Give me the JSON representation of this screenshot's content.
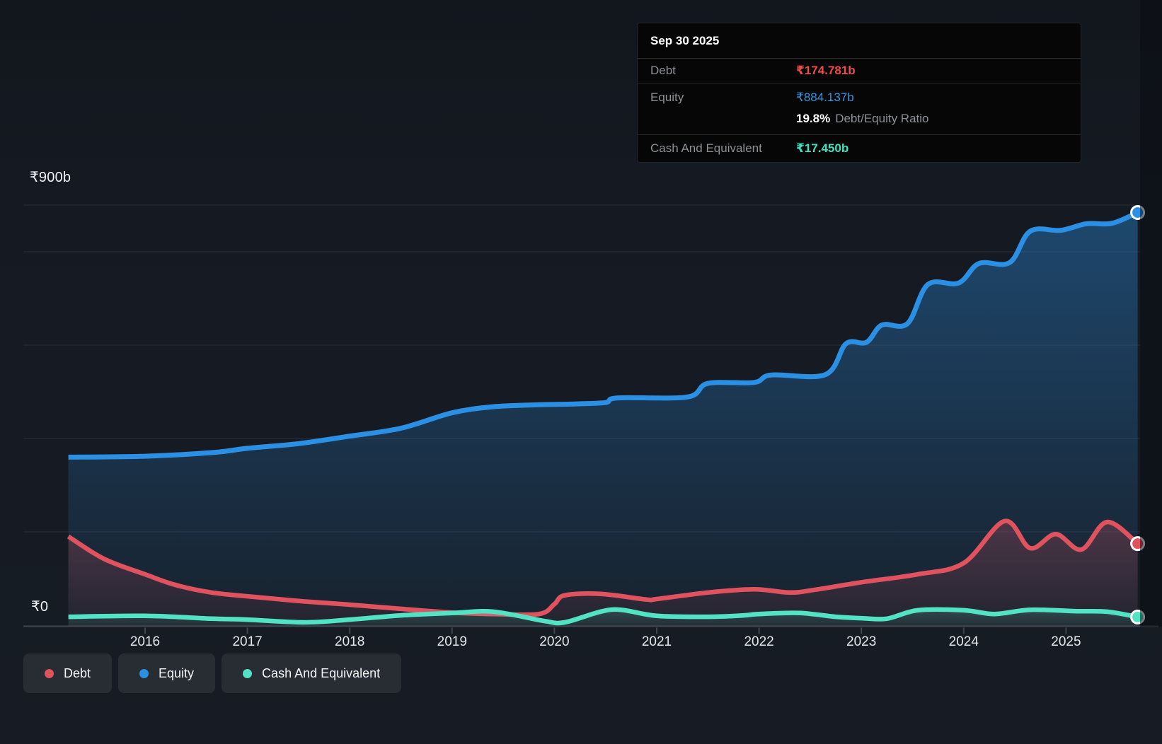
{
  "colors": {
    "page_bg": "#151a22",
    "equity": "#2b8fe3",
    "debt": "#e0525e",
    "cash": "#52e3c4",
    "equity_value_text": "#2e97e8",
    "debt_value_text": "#ee4b4b",
    "cash_value_text": "#3ee2bd",
    "grid": "#2d333d",
    "axis": "#3f4651",
    "marker_ring": "#ffffff"
  },
  "tooltip": {
    "date": "Sep 30 2025",
    "debt_label": "Debt",
    "debt_value": "₹174.781b",
    "equity_label": "Equity",
    "equity_value": "₹884.137b",
    "ratio_pct": "19.8%",
    "ratio_label": "Debt/Equity Ratio",
    "cash_label": "Cash And Equivalent",
    "cash_value": "₹17.450b"
  },
  "y_axis": {
    "top_label": "₹900b",
    "zero_label": "₹0"
  },
  "legend": [
    {
      "label": "Debt",
      "color_key": "debt"
    },
    {
      "label": "Equity",
      "color_key": "equity"
    },
    {
      "label": "Cash And Equivalent",
      "color_key": "cash"
    }
  ],
  "chart_data": {
    "type": "area",
    "unit": "₹ billions (b)",
    "x_ticks": [
      2016,
      2017,
      2018,
      2019,
      2020,
      2021,
      2022,
      2023,
      2024,
      2025
    ],
    "x_range": [
      2015.25,
      2025.75
    ],
    "y_range": [
      0,
      900
    ],
    "y_gridline_values": [
      900,
      800,
      600,
      400,
      200
    ],
    "grid": true,
    "legend_position": "bottom-left",
    "latest": {
      "date": "Sep 30 2025",
      "debt": 174.781,
      "equity": 884.137,
      "cash": 17.45,
      "debt_equity_ratio_pct": 19.8
    },
    "series": [
      {
        "name": "Equity",
        "color": "#2b8fe3",
        "points": [
          [
            2015.25,
            360
          ],
          [
            2016,
            362
          ],
          [
            2016.67,
            370
          ],
          [
            2017,
            379
          ],
          [
            2017.5,
            389
          ],
          [
            2018,
            405
          ],
          [
            2018.5,
            422
          ],
          [
            2019,
            455
          ],
          [
            2019.4,
            468
          ],
          [
            2019.8,
            472
          ],
          [
            2020.2,
            474
          ],
          [
            2020.5,
            477
          ],
          [
            2020.62,
            487
          ],
          [
            2021.3,
            489
          ],
          [
            2021.5,
            518
          ],
          [
            2021.95,
            520
          ],
          [
            2022.12,
            536
          ],
          [
            2022.65,
            537
          ],
          [
            2022.85,
            603
          ],
          [
            2023.05,
            606
          ],
          [
            2023.2,
            643
          ],
          [
            2023.45,
            646
          ],
          [
            2023.65,
            730
          ],
          [
            2023.95,
            733
          ],
          [
            2024.15,
            775
          ],
          [
            2024.45,
            777
          ],
          [
            2024.65,
            844
          ],
          [
            2024.95,
            846
          ],
          [
            2025.2,
            860
          ],
          [
            2025.45,
            861
          ],
          [
            2025.7,
            884.137
          ]
        ]
      },
      {
        "name": "Debt",
        "color": "#e0525e",
        "points": [
          [
            2015.25,
            190
          ],
          [
            2015.6,
            142
          ],
          [
            2016,
            109
          ],
          [
            2016.3,
            86
          ],
          [
            2016.65,
            70
          ],
          [
            2017,
            62
          ],
          [
            2017.5,
            52
          ],
          [
            2018,
            44
          ],
          [
            2018.5,
            35
          ],
          [
            2019,
            27
          ],
          [
            2019.4,
            24
          ],
          [
            2019.85,
            24
          ],
          [
            2020.0,
            45
          ],
          [
            2020.1,
            64
          ],
          [
            2020.45,
            67
          ],
          [
            2020.9,
            55
          ],
          [
            2021,
            56
          ],
          [
            2021.5,
            70
          ],
          [
            2021.95,
            77
          ],
          [
            2022.3,
            70
          ],
          [
            2022.55,
            76
          ],
          [
            2023,
            92
          ],
          [
            2023.55,
            109
          ],
          [
            2024,
            133
          ],
          [
            2024.4,
            223
          ],
          [
            2024.65,
            165
          ],
          [
            2024.9,
            195
          ],
          [
            2025.15,
            162
          ],
          [
            2025.4,
            221
          ],
          [
            2025.7,
            174.781
          ]
        ]
      },
      {
        "name": "Cash And Equivalent",
        "color": "#52e3c4",
        "points": [
          [
            2015.25,
            18
          ],
          [
            2016,
            20
          ],
          [
            2016.65,
            14
          ],
          [
            2017,
            12
          ],
          [
            2017.55,
            6
          ],
          [
            2018,
            12
          ],
          [
            2018.5,
            21
          ],
          [
            2019,
            26
          ],
          [
            2019.4,
            29
          ],
          [
            2019.9,
            9
          ],
          [
            2020.1,
            6
          ],
          [
            2020.45,
            29
          ],
          [
            2020.65,
            33
          ],
          [
            2021,
            20
          ],
          [
            2021.5,
            18
          ],
          [
            2021.85,
            21
          ],
          [
            2022,
            24
          ],
          [
            2022.4,
            26
          ],
          [
            2022.75,
            18
          ],
          [
            2023,
            15
          ],
          [
            2023.25,
            14
          ],
          [
            2023.55,
            32
          ],
          [
            2024,
            32
          ],
          [
            2024.3,
            24
          ],
          [
            2024.65,
            33
          ],
          [
            2025.1,
            30
          ],
          [
            2025.4,
            29
          ],
          [
            2025.7,
            17.45
          ]
        ]
      }
    ]
  }
}
